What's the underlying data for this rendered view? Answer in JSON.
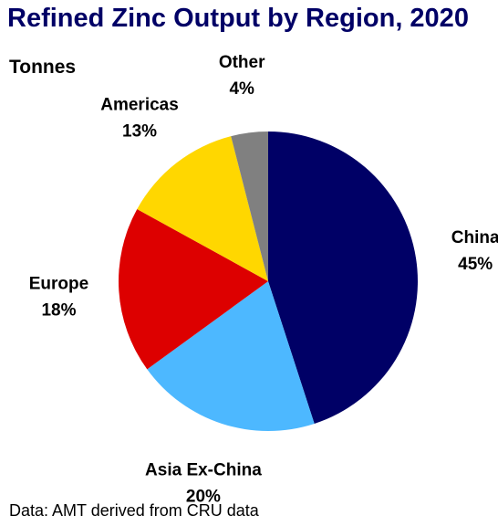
{
  "chart_data": {
    "type": "pie",
    "title": "Refined Zinc Output by Region, 2020",
    "subtitle": "Tonnes",
    "source": "Data: AMT derived from CRU data",
    "slices": [
      {
        "label": "China",
        "value": 45,
        "value_label": "45%",
        "color": "#000066"
      },
      {
        "label": "Asia Ex-China",
        "value": 20,
        "value_label": "20%",
        "color": "#4db8ff"
      },
      {
        "label": "Europe",
        "value": 18,
        "value_label": "18%",
        "color": "#dd0000"
      },
      {
        "label": "Americas",
        "value": 13,
        "value_label": "13%",
        "color": "#ffd700"
      },
      {
        "label": "Other",
        "value": 4,
        "value_label": "4%",
        "color": "#808080"
      }
    ]
  }
}
